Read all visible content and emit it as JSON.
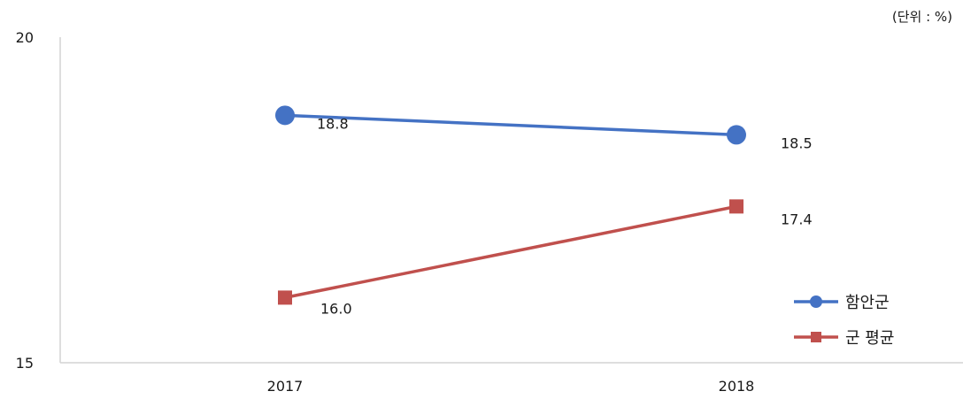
{
  "chart_data": {
    "type": "line",
    "unit_label": "(단위 : %)",
    "categories": [
      "2017",
      "2018"
    ],
    "series": [
      {
        "name": "함안군",
        "values": [
          18.8,
          18.5
        ],
        "value_labels": [
          "18.8",
          "18.5"
        ],
        "color": "#4472C4",
        "marker": "circle"
      },
      {
        "name": "군 평균",
        "values": [
          16.0,
          17.4
        ],
        "value_labels": [
          "16.0",
          "17.4"
        ],
        "color": "#C0504D",
        "marker": "square"
      }
    ],
    "ylim": [
      15,
      20
    ],
    "yticks": [
      15,
      20
    ],
    "ytick_labels": [
      "15",
      "20"
    ],
    "grid": false,
    "legend_position": "right"
  }
}
